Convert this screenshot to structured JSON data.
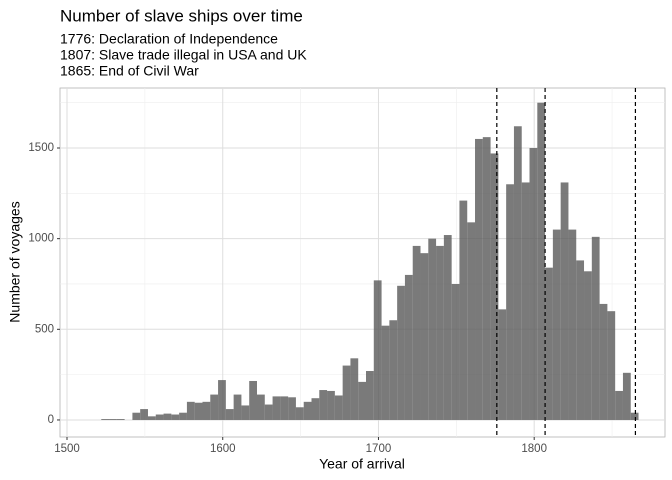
{
  "chart_data": {
    "type": "histogram",
    "title": "Number of slave ships over time",
    "subtitle": [
      "1776: Declaration of Independence",
      "1807: Slave trade illegal in USA and UK",
      "1865: End of Civil War"
    ],
    "x_label": "Year of arrival",
    "y_label": "Number of voyages",
    "bins": [
      1522,
      1527,
      1532,
      1537,
      1542,
      1547,
      1552,
      1557,
      1562,
      1567,
      1572,
      1577,
      1582,
      1587,
      1592,
      1597,
      1602,
      1607,
      1612,
      1617,
      1622,
      1627,
      1632,
      1637,
      1642,
      1647,
      1652,
      1657,
      1662,
      1667,
      1672,
      1677,
      1682,
      1687,
      1692,
      1697,
      1702,
      1707,
      1712,
      1717,
      1722,
      1727,
      1732,
      1737,
      1742,
      1747,
      1752,
      1757,
      1762,
      1767,
      1772,
      1777,
      1782,
      1787,
      1792,
      1797,
      1802,
      1807,
      1812,
      1817,
      1822,
      1827,
      1832,
      1837,
      1842,
      1847,
      1852,
      1857,
      1862,
      1867
    ],
    "counts": [
      5,
      5,
      5,
      0,
      40,
      60,
      20,
      30,
      35,
      30,
      40,
      100,
      95,
      100,
      140,
      220,
      60,
      140,
      80,
      215,
      140,
      85,
      130,
      130,
      125,
      70,
      100,
      120,
      165,
      160,
      135,
      300,
      340,
      210,
      270,
      770,
      520,
      550,
      740,
      800,
      960,
      920,
      1000,
      960,
      1020,
      750,
      1210,
      1090,
      1550,
      1560,
      1470,
      610,
      1300,
      1620,
      1310,
      1500,
      1750,
      840,
      1050,
      1310,
      1050,
      880,
      820,
      1010,
      640,
      600,
      160,
      260,
      40
    ],
    "color": "#595959",
    "opacity": 0.8,
    "vlines": [
      1776,
      1807,
      1865
    ],
    "xlim": [
      1495.5,
      1884
    ],
    "ylim": [
      -94,
      1831
    ],
    "xticks": [
      1500,
      1600,
      1700,
      1800
    ],
    "yticks": [
      0,
      500,
      1000,
      1500
    ],
    "x_minor_ticks": [
      1550,
      1650,
      1750,
      1850
    ],
    "y_minor_ticks": [
      250,
      750,
      1250,
      1750
    ],
    "grid": true
  }
}
